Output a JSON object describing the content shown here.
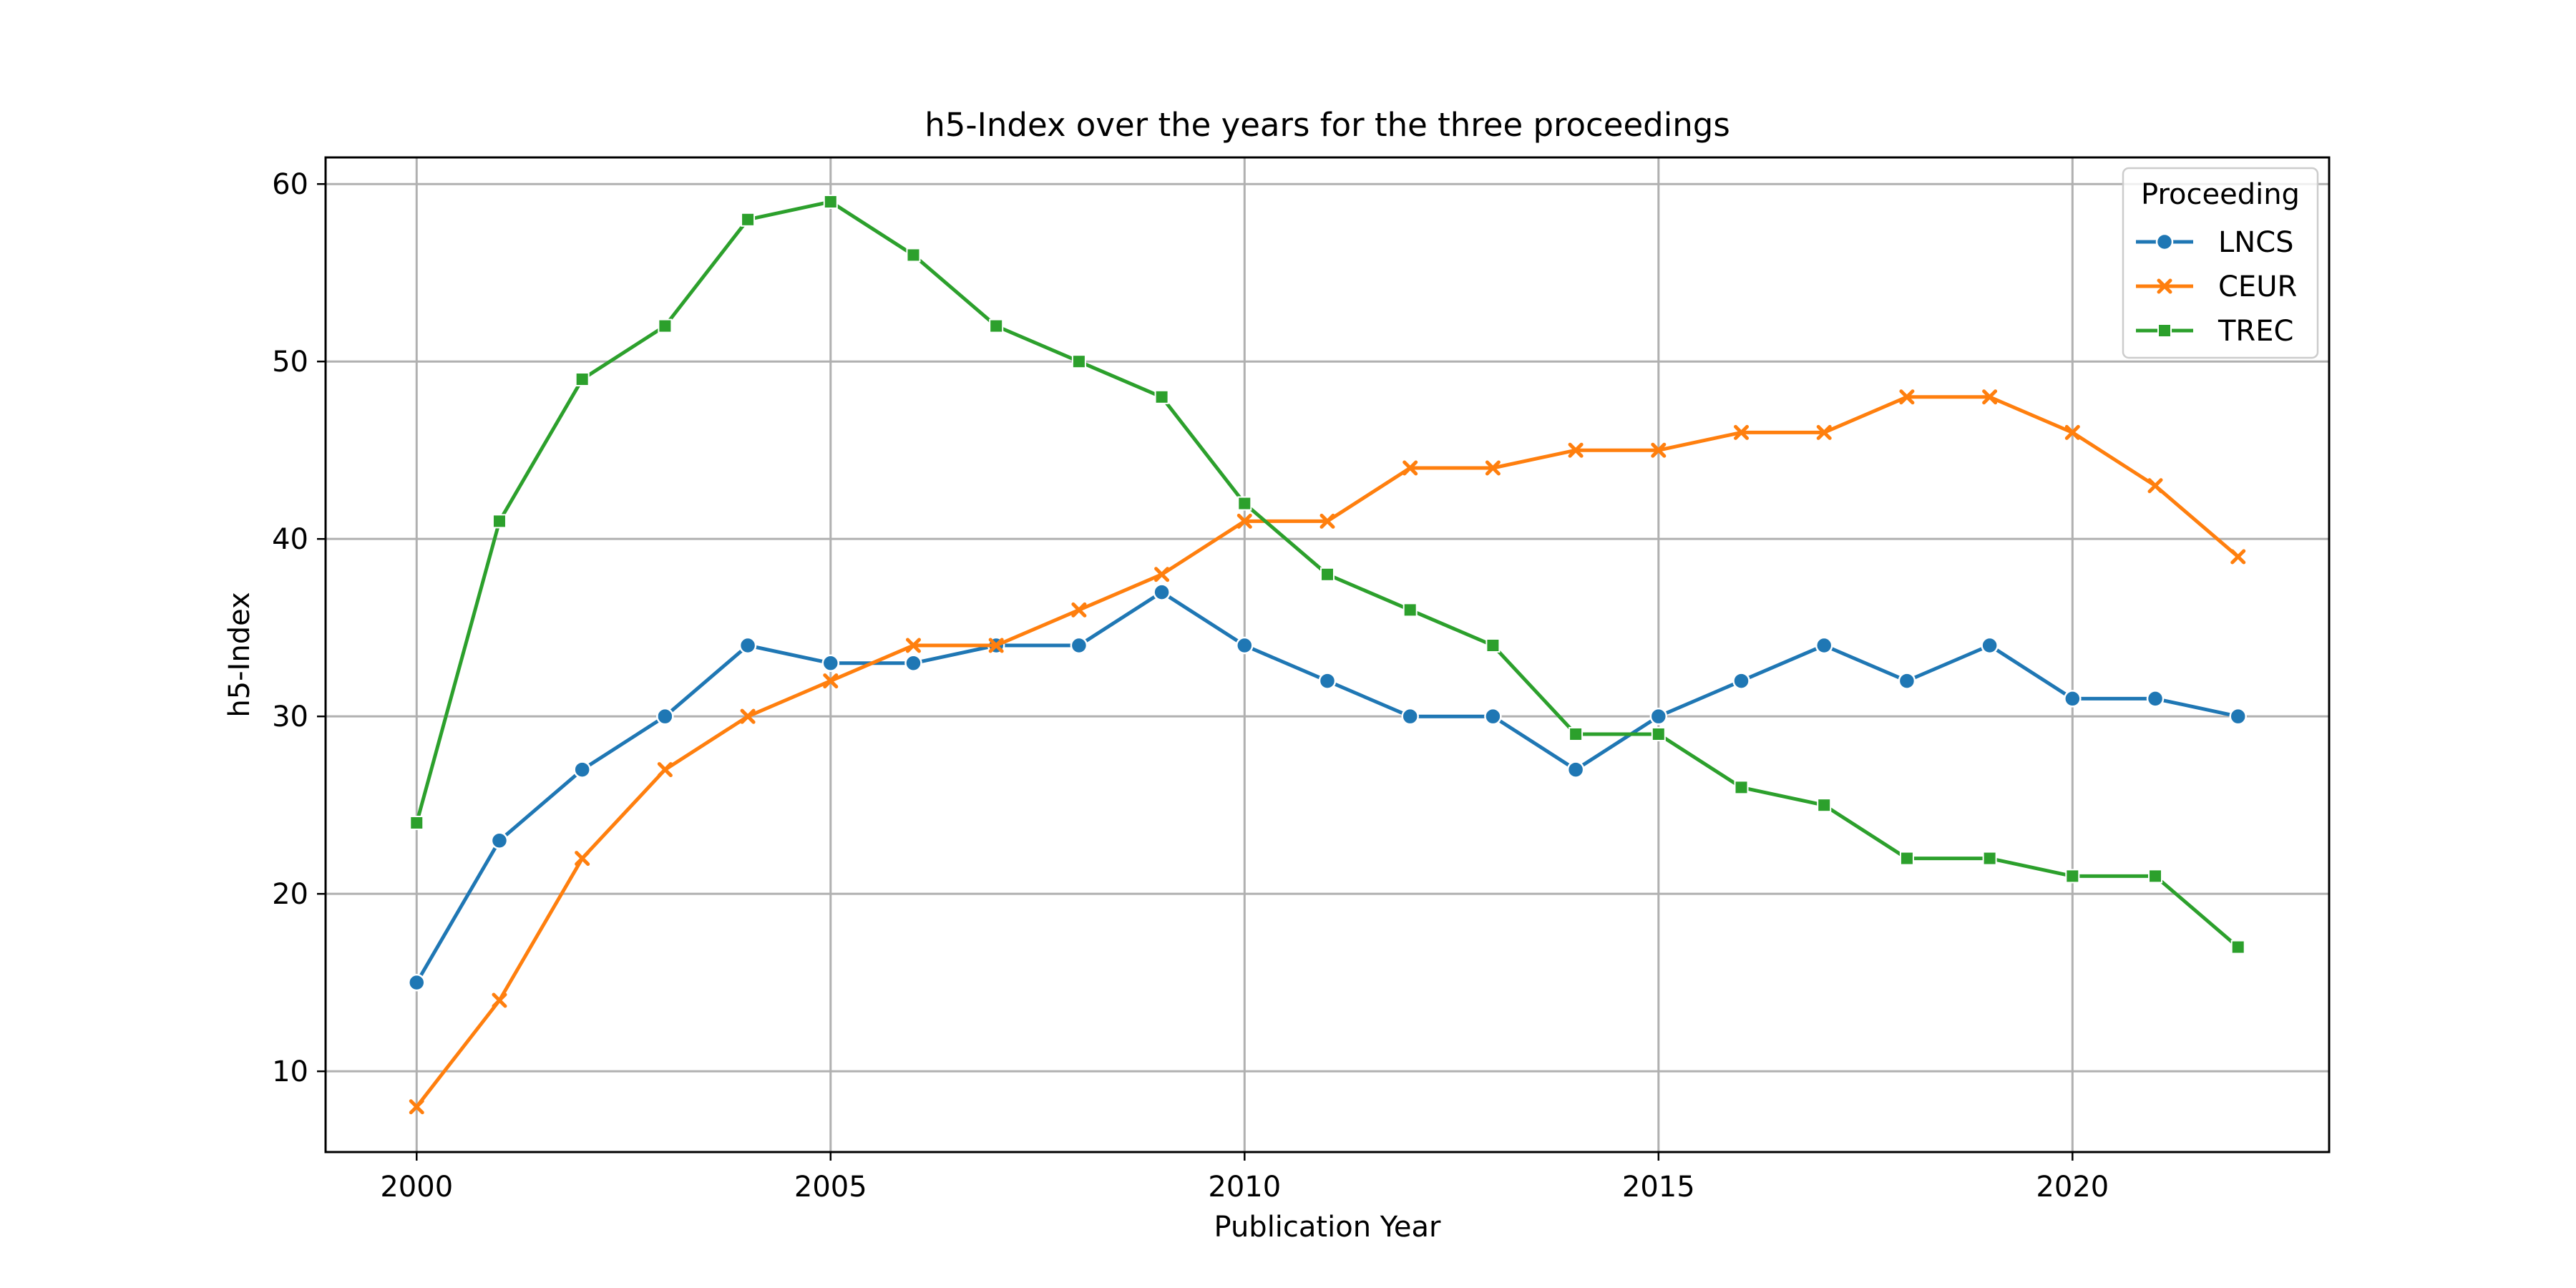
{
  "chart_data": {
    "type": "line",
    "title": "h5-Index over the years for the three proceedings",
    "xlabel": "Publication Year",
    "ylabel": "h5-Index",
    "xlim": [
      1998.9,
      2023.1
    ],
    "ylim": [
      5.45,
      61.5
    ],
    "xticks": [
      2000,
      2005,
      2010,
      2015,
      2020
    ],
    "yticks": [
      10,
      20,
      30,
      40,
      50,
      60
    ],
    "grid": true,
    "legend": {
      "title": "Proceeding",
      "placement": "top-right"
    },
    "x": [
      2000,
      2001,
      2002,
      2003,
      2004,
      2005,
      2006,
      2007,
      2008,
      2009,
      2010,
      2011,
      2012,
      2013,
      2014,
      2015,
      2016,
      2017,
      2018,
      2019,
      2020,
      2021,
      2022
    ],
    "series": [
      {
        "name": "LNCS",
        "color": "#1f77b4",
        "marker": "circle",
        "values": [
          15,
          23,
          27,
          30,
          34,
          33,
          33,
          34,
          34,
          37,
          34,
          32,
          30,
          30,
          27,
          30,
          32,
          34,
          32,
          34,
          31,
          31,
          30
        ]
      },
      {
        "name": "CEUR",
        "color": "#ff7f0e",
        "marker": "x",
        "values": [
          8,
          14,
          22,
          27,
          30,
          32,
          34,
          34,
          36,
          38,
          41,
          41,
          44,
          44,
          45,
          45,
          46,
          46,
          48,
          48,
          46,
          43,
          39
        ]
      },
      {
        "name": "TREC",
        "color": "#2ca02c",
        "marker": "square",
        "values": [
          24,
          41,
          49,
          52,
          58,
          59,
          56,
          52,
          50,
          48,
          42,
          38,
          36,
          34,
          29,
          29,
          26,
          25,
          22,
          22,
          21,
          21,
          17
        ]
      }
    ]
  }
}
